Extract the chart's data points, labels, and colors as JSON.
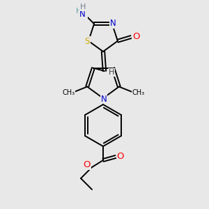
{
  "bg_color": "#e8e8e8",
  "bond_color": "#000000",
  "atom_colors": {
    "N": "#0000CD",
    "O": "#FF0000",
    "S": "#CCAA00",
    "H": "#404040",
    "C": "#000000"
  },
  "font_size": 8.5,
  "line_width": 1.4,
  "fig_size": [
    3.0,
    3.0
  ],
  "dpi": 100
}
